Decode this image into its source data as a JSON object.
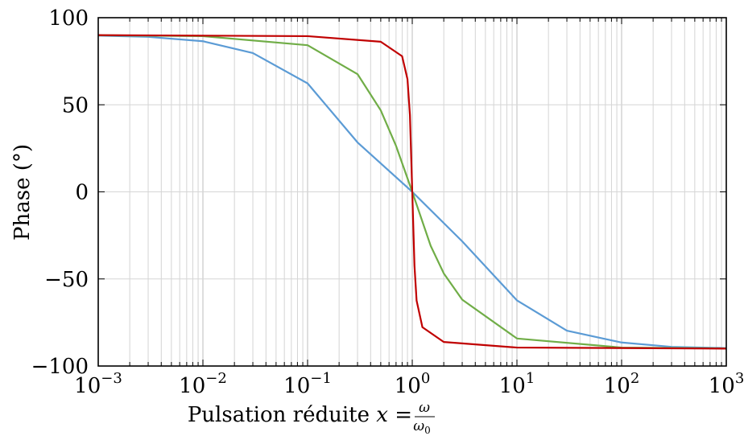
{
  "chart_data": {
    "type": "line",
    "title": "",
    "xlabel": "Pulsation réduite x = ω/ω₀",
    "xlabel_parts": {
      "prefix": "Pulsation réduite ",
      "var": "x",
      "eq": " = ",
      "num": "ω",
      "den": "ω",
      "den_sub": "0"
    },
    "ylabel": "Phase (°)",
    "xscale": "log",
    "xlim": [
      0.001,
      1000
    ],
    "ylim": [
      -100,
      100
    ],
    "grid": true,
    "x_ticks": [
      {
        "base": "10",
        "exp": "−3",
        "value": 0.001
      },
      {
        "base": "10",
        "exp": "−2",
        "value": 0.01
      },
      {
        "base": "10",
        "exp": "−1",
        "value": 0.1
      },
      {
        "base": "10",
        "exp": "0",
        "value": 1
      },
      {
        "base": "10",
        "exp": "1",
        "value": 10
      },
      {
        "base": "10",
        "exp": "2",
        "value": 100
      },
      {
        "base": "10",
        "exp": "3",
        "value": 1000
      }
    ],
    "y_ticks": [
      {
        "label": "100",
        "value": 100
      },
      {
        "label": "50",
        "value": 50
      },
      {
        "label": "0",
        "value": 0
      },
      {
        "label": "−50",
        "value": -50
      },
      {
        "label": "−100",
        "value": -100
      }
    ],
    "series": [
      {
        "color": "#5b9bd5",
        "x": [
          0.001,
          0.003,
          0.01,
          0.03,
          0.1,
          0.3,
          1,
          3,
          10,
          30,
          100,
          300,
          1000
        ],
        "values": [
          89.7,
          89.0,
          86.5,
          79.7,
          62.3,
          28.4,
          0.0,
          -28.4,
          -62.3,
          -79.7,
          -86.5,
          -89.0,
          -89.7
        ]
      },
      {
        "color": "#70ad47",
        "x": [
          0.001,
          0.01,
          0.1,
          0.3,
          0.5,
          0.7,
          1,
          1.5,
          2,
          3,
          10,
          100,
          1000
        ],
        "values": [
          89.9,
          89.4,
          84.2,
          67.6,
          46.8,
          26.4,
          0.0,
          -31.0,
          -46.8,
          -61.9,
          -84.2,
          -89.4,
          -89.9
        ]
      },
      {
        "color": "#c00000",
        "x": [
          0.001,
          0.1,
          0.5,
          0.8,
          0.9,
          0.95,
          1,
          1.05,
          1.1,
          1.25,
          2,
          10,
          1000
        ],
        "values": [
          90.0,
          89.4,
          86.2,
          77.9,
          64.7,
          44.2,
          0.0,
          -42.4,
          -62.4,
          -77.7,
          -86.2,
          -89.4,
          -90.0
        ]
      }
    ]
  }
}
